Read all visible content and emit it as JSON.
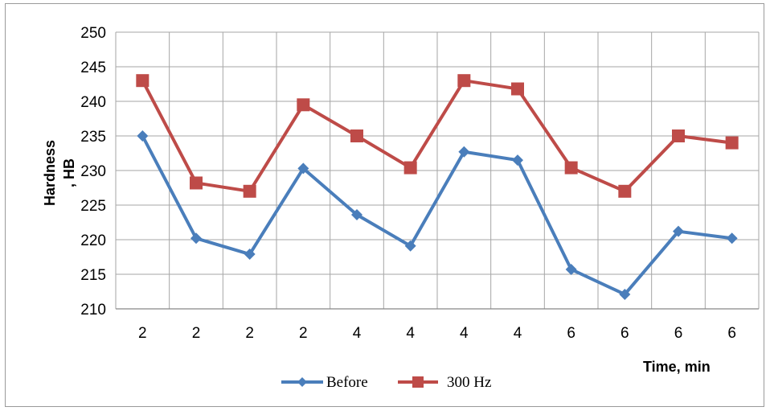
{
  "chart_data": {
    "type": "line",
    "categories": [
      "2",
      "2",
      "2",
      "2",
      "4",
      "4",
      "4",
      "4",
      "6",
      "6",
      "6",
      "6"
    ],
    "series": [
      {
        "name": "Before",
        "color": "#4a7ebb",
        "marker": "diamond",
        "values": [
          235,
          220.2,
          217.9,
          230.3,
          223.6,
          219.1,
          232.7,
          231.5,
          215.7,
          212.1,
          221.2,
          220.2
        ]
      },
      {
        "name": "300 Hz",
        "color": "#be4b48",
        "marker": "square",
        "values": [
          243,
          228.2,
          227,
          239.5,
          235,
          230.4,
          243,
          241.8,
          230.4,
          227,
          235,
          234
        ]
      }
    ],
    "ylim": [
      210,
      250
    ],
    "yticks": [
      210,
      215,
      220,
      225,
      230,
      235,
      240,
      245,
      250
    ],
    "xlabel": "Time, min",
    "ylabel_line1": "Hardness",
    "ylabel_line2": ", HB",
    "grid": true,
    "legend_position": "bottom"
  }
}
